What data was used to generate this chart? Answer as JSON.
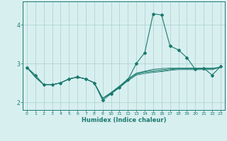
{
  "title": "",
  "xlabel": "Humidex (Indice chaleur)",
  "x_values": [
    0,
    1,
    2,
    3,
    4,
    5,
    6,
    7,
    8,
    9,
    10,
    11,
    12,
    13,
    14,
    15,
    16,
    17,
    18,
    19,
    20,
    21,
    22,
    23
  ],
  "series": [
    [
      2.9,
      2.7,
      2.45,
      2.45,
      2.5,
      2.6,
      2.65,
      2.6,
      2.5,
      2.05,
      2.22,
      2.38,
      2.58,
      3.0,
      3.28,
      4.28,
      4.25,
      3.45,
      3.35,
      3.15,
      2.85,
      2.88,
      2.7,
      2.92
    ],
    [
      2.9,
      2.65,
      2.45,
      2.45,
      2.5,
      2.6,
      2.65,
      2.6,
      2.5,
      2.1,
      2.25,
      2.4,
      2.6,
      2.75,
      2.8,
      2.85,
      2.87,
      2.88,
      2.88,
      2.88,
      2.88,
      2.88,
      2.88,
      2.9
    ],
    [
      2.9,
      2.65,
      2.45,
      2.45,
      2.5,
      2.6,
      2.65,
      2.6,
      2.5,
      2.1,
      2.25,
      2.42,
      2.6,
      2.74,
      2.79,
      2.82,
      2.84,
      2.86,
      2.87,
      2.87,
      2.87,
      2.87,
      2.87,
      2.9
    ],
    [
      2.9,
      2.65,
      2.45,
      2.45,
      2.5,
      2.6,
      2.65,
      2.6,
      2.5,
      2.1,
      2.24,
      2.4,
      2.57,
      2.72,
      2.77,
      2.79,
      2.81,
      2.84,
      2.86,
      2.86,
      2.86,
      2.86,
      2.86,
      2.9
    ],
    [
      2.9,
      2.65,
      2.45,
      2.45,
      2.5,
      2.6,
      2.65,
      2.6,
      2.5,
      2.1,
      2.22,
      2.38,
      2.55,
      2.7,
      2.74,
      2.77,
      2.79,
      2.82,
      2.84,
      2.84,
      2.84,
      2.84,
      2.84,
      2.9
    ]
  ],
  "line_color": "#1a7a6e",
  "bg_color": "#d8eff0",
  "grid_color": "#aacece",
  "ylim": [
    1.8,
    4.6
  ],
  "yticks": [
    2,
    3,
    4
  ],
  "xlim": [
    -0.5,
    23.5
  ],
  "figsize": [
    3.2,
    2.0
  ],
  "dpi": 100
}
